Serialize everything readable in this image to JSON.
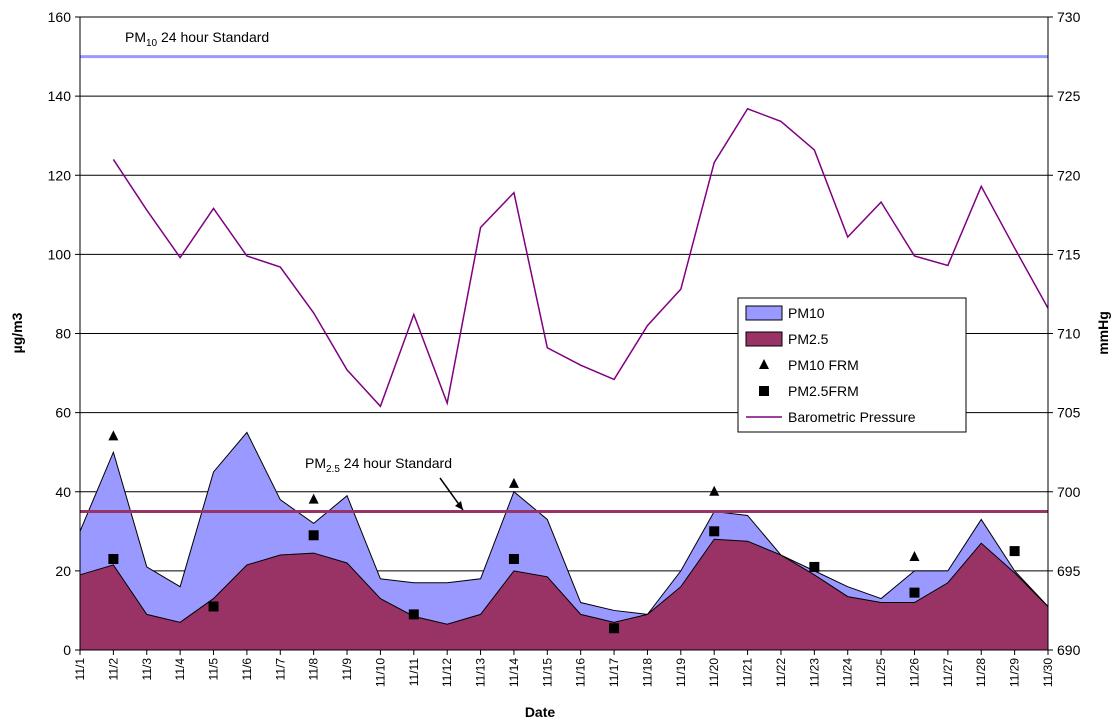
{
  "chart_data": {
    "type": "area",
    "x_label": "Date",
    "y_label": "µg/m3",
    "y2_label": "mmHg",
    "categories": [
      "11/1",
      "11/2",
      "11/3",
      "11/4",
      "11/5",
      "11/6",
      "11/7",
      "11/8",
      "11/9",
      "11/10",
      "11/11",
      "11/12",
      "11/13",
      "11/14",
      "11/15",
      "11/16",
      "11/17",
      "11/18",
      "11/19",
      "11/20",
      "11/21",
      "11/22",
      "11/23",
      "11/24",
      "11/25",
      "11/26",
      "11/27",
      "11/28",
      "11/29",
      "11/30"
    ],
    "ylim": [
      0,
      160
    ],
    "yticks": [
      0,
      20,
      40,
      60,
      80,
      100,
      120,
      140,
      160
    ],
    "y2lim": [
      690,
      730
    ],
    "y2ticks": [
      690,
      695,
      700,
      705,
      710,
      715,
      720,
      725,
      730
    ],
    "grid": true,
    "series": [
      {
        "name": "PM10",
        "kind": "area",
        "color": "#9999ff",
        "values": [
          30,
          50,
          21,
          16,
          45,
          55,
          38,
          32,
          39,
          18,
          17,
          17,
          18,
          40,
          33,
          12,
          10,
          9,
          20,
          35,
          34,
          24,
          20,
          16,
          13,
          20,
          20,
          33,
          20,
          11
        ]
      },
      {
        "name": "PM2.5",
        "kind": "area",
        "color": "#993366",
        "values": [
          19,
          21.5,
          9,
          7,
          13,
          21.5,
          24,
          24.5,
          22,
          13,
          8.5,
          6.5,
          9,
          20,
          18.5,
          9,
          7,
          9,
          16,
          28,
          27.5,
          24,
          19,
          13.5,
          12,
          12,
          17,
          27,
          19.5,
          11
        ]
      },
      {
        "name": "PM10 FRM",
        "kind": "triangle",
        "color": "#000000",
        "values": [
          null,
          54,
          null,
          null,
          null,
          null,
          null,
          38,
          null,
          null,
          null,
          null,
          null,
          42,
          null,
          null,
          null,
          null,
          null,
          40,
          null,
          null,
          null,
          null,
          null,
          23.5,
          null,
          null,
          null,
          null
        ]
      },
      {
        "name": "PM2.5FRM",
        "kind": "square",
        "color": "#000000",
        "values": [
          null,
          23,
          null,
          null,
          11,
          null,
          null,
          29,
          null,
          null,
          9,
          null,
          null,
          23,
          null,
          null,
          5.5,
          null,
          null,
          30,
          null,
          null,
          21,
          null,
          null,
          14.5,
          null,
          null,
          25,
          null
        ]
      },
      {
        "name": "Barometric Pressure",
        "kind": "line",
        "axis": "y2",
        "color": "#800080",
        "values": [
          null,
          721,
          717.8,
          714.8,
          717.9,
          714.9,
          714.2,
          711.3,
          707.7,
          705.4,
          711.2,
          705.6,
          716.7,
          718.9,
          709.1,
          708,
          707.1,
          710.5,
          712.8,
          720.8,
          724.2,
          723.4,
          721.6,
          716.1,
          718.3,
          714.9,
          714.3,
          719.3,
          715.4,
          711.6
        ]
      }
    ],
    "standards": [
      {
        "value": 150,
        "color": "#9999ff",
        "label": "PM",
        "label_sub": "10",
        "label_rest": " 24 hour Standard"
      },
      {
        "value": 35,
        "color": "#993366",
        "label": "PM",
        "label_sub": "2.5",
        "label_rest": " 24 hour Standard"
      }
    ]
  }
}
